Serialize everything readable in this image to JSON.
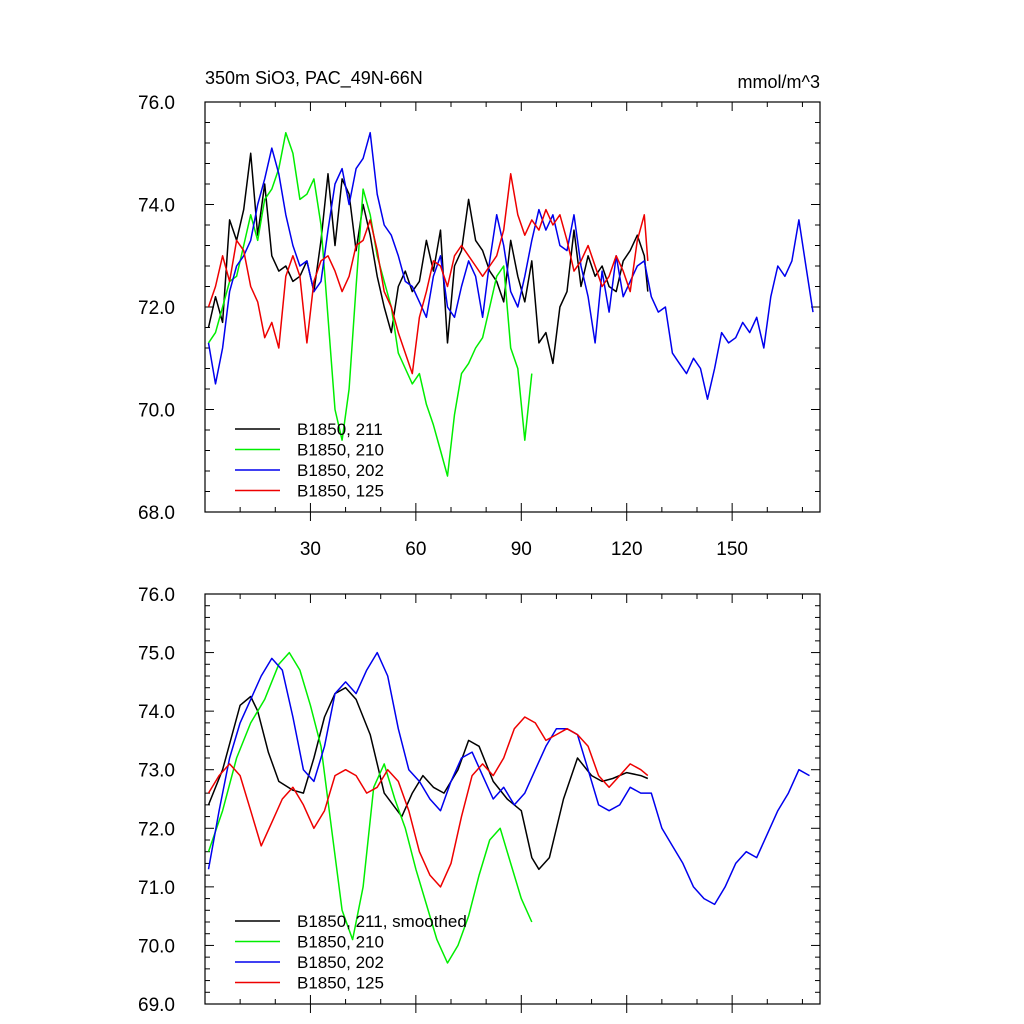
{
  "chart_data": [
    {
      "type": "line",
      "title_left": "350m SiO3, PAC_49N-66N",
      "title_right": "mmol/m^3",
      "xlim": [
        0,
        175
      ],
      "ylim": [
        68,
        76
      ],
      "x_ticks": [
        30,
        60,
        90,
        120,
        150
      ],
      "x_tick_labels": [
        "30",
        "60",
        "90",
        "120",
        "150"
      ],
      "y_ticks": [
        68,
        70,
        72,
        74,
        76
      ],
      "y_tick_labels": [
        "68.0",
        "70.0",
        "72.0",
        "74.0",
        "76.0"
      ],
      "legend_position": "bottom-left",
      "series": [
        {
          "name": "B1850, 211",
          "color": "#000000",
          "x": [
            1,
            3,
            5,
            7,
            9,
            11,
            13,
            15,
            17,
            19,
            21,
            23,
            25,
            27,
            29,
            31,
            33,
            35,
            37,
            39,
            41,
            43,
            45,
            47,
            49,
            51,
            53,
            55,
            57,
            59,
            61,
            63,
            65,
            67,
            69,
            71,
            73,
            75,
            77,
            79,
            81,
            83,
            85,
            87,
            89,
            91,
            93,
            95,
            97,
            99,
            101,
            103,
            105,
            107,
            109,
            111,
            113,
            115,
            117,
            119,
            121,
            123,
            125,
            126
          ],
          "values": [
            71.6,
            72.2,
            71.7,
            73.7,
            73.3,
            73.9,
            75.0,
            73.4,
            74.4,
            73.0,
            72.7,
            72.8,
            72.5,
            72.6,
            72.9,
            72.3,
            73.3,
            74.6,
            73.2,
            74.5,
            74.2,
            73.1,
            74.0,
            73.4,
            72.6,
            72.0,
            71.5,
            72.4,
            72.7,
            72.3,
            72.5,
            73.3,
            72.7,
            73.5,
            71.3,
            72.8,
            73.1,
            74.1,
            73.3,
            73.1,
            72.7,
            72.5,
            72.1,
            73.3,
            72.6,
            72.1,
            72.9,
            71.3,
            71.5,
            70.9,
            72.0,
            72.3,
            73.5,
            72.4,
            73.0,
            72.6,
            72.8,
            72.4,
            72.3,
            72.9,
            73.1,
            73.4,
            73.0,
            72.3
          ]
        },
        {
          "name": "B1850, 210",
          "color": "#00ee00",
          "x": [
            1,
            3,
            5,
            7,
            9,
            11,
            13,
            15,
            17,
            19,
            21,
            23,
            25,
            27,
            29,
            31,
            33,
            35,
            37,
            39,
            41,
            43,
            45,
            47,
            49,
            51,
            53,
            55,
            57,
            59,
            61,
            63,
            65,
            67,
            69,
            71,
            73,
            75,
            77,
            79,
            81,
            83,
            85,
            87,
            89,
            91,
            93
          ],
          "values": [
            71.3,
            71.5,
            72.0,
            72.5,
            72.6,
            73.2,
            73.8,
            73.3,
            74.1,
            74.3,
            74.7,
            75.4,
            75.0,
            74.1,
            74.2,
            74.5,
            73.6,
            71.8,
            70.0,
            69.4,
            70.4,
            72.4,
            74.3,
            73.8,
            73.0,
            72.5,
            72.0,
            71.1,
            70.8,
            70.5,
            70.7,
            70.1,
            69.7,
            69.2,
            68.7,
            69.9,
            70.7,
            70.9,
            71.2,
            71.4,
            72.0,
            72.6,
            72.8,
            71.2,
            70.8,
            69.4,
            70.7
          ]
        },
        {
          "name": "B1850, 202",
          "color": "#0000ee",
          "x": [
            1,
            3,
            5,
            7,
            9,
            11,
            13,
            15,
            17,
            19,
            21,
            23,
            25,
            27,
            29,
            31,
            33,
            35,
            37,
            39,
            41,
            43,
            45,
            47,
            49,
            51,
            53,
            55,
            57,
            59,
            61,
            63,
            65,
            67,
            69,
            71,
            73,
            75,
            77,
            79,
            81,
            83,
            85,
            87,
            89,
            91,
            93,
            95,
            97,
            99,
            101,
            103,
            105,
            107,
            109,
            111,
            113,
            115,
            117,
            119,
            121,
            123,
            125,
            127,
            129,
            131,
            133,
            135,
            137,
            139,
            141,
            143,
            145,
            147,
            149,
            151,
            153,
            155,
            157,
            159,
            161,
            163,
            165,
            167,
            169,
            171,
            173
          ],
          "values": [
            71.3,
            70.5,
            71.2,
            72.3,
            72.8,
            73.0,
            73.3,
            74.0,
            74.5,
            75.1,
            74.6,
            73.8,
            73.2,
            72.8,
            72.9,
            72.3,
            72.5,
            73.5,
            74.4,
            74.7,
            74.0,
            74.7,
            74.9,
            75.4,
            74.2,
            73.6,
            73.4,
            73.0,
            72.5,
            72.4,
            72.1,
            71.8,
            72.6,
            73.0,
            72.0,
            71.8,
            72.4,
            72.9,
            72.6,
            71.8,
            72.9,
            73.8,
            73.2,
            72.3,
            72.0,
            72.6,
            73.3,
            73.9,
            73.5,
            73.8,
            73.2,
            73.1,
            73.8,
            72.8,
            72.2,
            71.3,
            72.7,
            71.9,
            73.0,
            72.2,
            72.5,
            72.8,
            72.9,
            72.2,
            71.9,
            72.0,
            71.1,
            70.9,
            70.7,
            71.0,
            70.8,
            70.2,
            70.8,
            71.5,
            71.3,
            71.4,
            71.7,
            71.5,
            71.8,
            71.2,
            72.2,
            72.8,
            72.6,
            72.9,
            73.7,
            72.8,
            71.9
          ]
        },
        {
          "name": "B1850, 125",
          "color": "#ee0000",
          "x": [
            1,
            3,
            5,
            7,
            9,
            11,
            13,
            15,
            17,
            19,
            21,
            23,
            25,
            27,
            29,
            31,
            33,
            35,
            37,
            39,
            41,
            43,
            45,
            47,
            49,
            51,
            53,
            55,
            57,
            59,
            61,
            63,
            65,
            67,
            69,
            71,
            73,
            75,
            77,
            79,
            81,
            83,
            85,
            87,
            89,
            91,
            93,
            95,
            97,
            99,
            101,
            103,
            105,
            107,
            109,
            111,
            113,
            115,
            117,
            119,
            121,
            123,
            125,
            126
          ],
          "values": [
            72.0,
            72.4,
            73.0,
            72.5,
            73.3,
            73.1,
            72.4,
            72.1,
            71.4,
            71.7,
            71.2,
            72.6,
            73.0,
            72.6,
            71.3,
            72.5,
            72.9,
            73.0,
            72.7,
            72.3,
            72.6,
            73.2,
            73.3,
            73.7,
            73.1,
            72.3,
            72.0,
            71.5,
            71.1,
            70.7,
            71.8,
            72.3,
            72.9,
            72.8,
            72.4,
            73.0,
            73.2,
            73.0,
            72.8,
            72.6,
            72.8,
            73.0,
            73.5,
            74.6,
            73.8,
            73.4,
            73.7,
            73.5,
            73.9,
            73.6,
            73.8,
            73.3,
            72.7,
            72.9,
            73.2,
            72.8,
            72.4,
            72.6,
            73.0,
            72.7,
            72.3,
            73.3,
            73.8,
            72.9
          ]
        }
      ]
    },
    {
      "type": "line",
      "xlim": [
        0,
        175
      ],
      "ylim": [
        69,
        76
      ],
      "y_ticks": [
        69,
        70,
        71,
        72,
        73,
        74,
        75,
        76
      ],
      "y_tick_labels": [
        "69.0",
        "70.0",
        "71.0",
        "72.0",
        "73.0",
        "74.0",
        "75.0",
        "76.0"
      ],
      "x_ticks": [
        30,
        60,
        90,
        120,
        150
      ],
      "legend_position": "bottom-left",
      "series": [
        {
          "name": "B1850, 211, smoothed",
          "color": "#000000",
          "x": [
            1,
            5,
            10,
            13,
            15,
            18,
            21,
            25,
            28,
            31,
            34,
            37,
            40,
            43,
            47,
            51,
            56,
            59,
            62,
            65,
            68,
            72,
            75,
            78,
            82,
            86,
            90,
            93,
            95,
            98,
            102,
            106,
            110,
            113,
            116,
            120,
            124,
            126
          ],
          "values": [
            72.4,
            73.0,
            74.1,
            74.25,
            74.0,
            73.3,
            72.8,
            72.65,
            72.6,
            73.2,
            73.9,
            74.3,
            74.4,
            74.2,
            73.6,
            72.6,
            72.2,
            72.6,
            72.9,
            72.7,
            72.6,
            73.0,
            73.5,
            73.4,
            72.8,
            72.5,
            72.3,
            71.5,
            71.3,
            71.5,
            72.5,
            73.2,
            72.9,
            72.8,
            72.85,
            72.95,
            72.9,
            72.85
          ]
        },
        {
          "name": "B1850, 210",
          "color": "#00ee00",
          "x": [
            1,
            5,
            9,
            13,
            17,
            21,
            24,
            27,
            30,
            33,
            36,
            39,
            42,
            45,
            48,
            51,
            54,
            57,
            60,
            63,
            66,
            69,
            72,
            75,
            78,
            81,
            84,
            87,
            90,
            93
          ],
          "values": [
            71.6,
            72.3,
            73.2,
            73.8,
            74.2,
            74.8,
            75.0,
            74.7,
            74.1,
            73.4,
            72.0,
            70.6,
            70.1,
            71.0,
            72.7,
            73.1,
            72.5,
            72.0,
            71.3,
            70.7,
            70.1,
            69.7,
            70.0,
            70.5,
            71.2,
            71.8,
            72.0,
            71.4,
            70.8,
            70.4
          ]
        },
        {
          "name": "B1850, 202",
          "color": "#0000ee",
          "x": [
            1,
            4,
            7,
            10,
            13,
            16,
            19,
            22,
            25,
            28,
            31,
            34,
            37,
            40,
            43,
            46,
            49,
            52,
            55,
            58,
            61,
            64,
            67,
            70,
            73,
            76,
            79,
            82,
            85,
            88,
            91,
            94,
            97,
            100,
            103,
            106,
            109,
            112,
            115,
            118,
            121,
            124,
            127,
            130,
            133,
            136,
            139,
            142,
            145,
            148,
            151,
            154,
            157,
            160,
            163,
            166,
            169,
            172
          ],
          "values": [
            71.3,
            72.3,
            73.2,
            73.8,
            74.2,
            74.6,
            74.9,
            74.7,
            73.9,
            73.0,
            72.8,
            73.4,
            74.3,
            74.5,
            74.3,
            74.7,
            75.0,
            74.6,
            73.7,
            73.0,
            72.8,
            72.5,
            72.3,
            72.8,
            73.2,
            73.3,
            72.9,
            72.5,
            72.7,
            72.4,
            72.6,
            73.0,
            73.4,
            73.7,
            73.7,
            73.6,
            73.0,
            72.4,
            72.3,
            72.4,
            72.7,
            72.6,
            72.6,
            72.0,
            71.7,
            71.4,
            71.0,
            70.8,
            70.7,
            71.0,
            71.4,
            71.6,
            71.5,
            71.9,
            72.3,
            72.6,
            73.0,
            72.9
          ]
        },
        {
          "name": "B1850, 125",
          "color": "#ee0000",
          "x": [
            1,
            4,
            7,
            10,
            13,
            16,
            19,
            22,
            25,
            28,
            31,
            34,
            37,
            40,
            43,
            46,
            49,
            52,
            55,
            58,
            61,
            64,
            67,
            70,
            73,
            76,
            79,
            82,
            85,
            88,
            91,
            94,
            97,
            100,
            103,
            106,
            109,
            112,
            115,
            118,
            121,
            124,
            126
          ],
          "values": [
            72.6,
            72.9,
            73.1,
            72.9,
            72.3,
            71.7,
            72.1,
            72.5,
            72.7,
            72.4,
            72.0,
            72.3,
            72.9,
            73.0,
            72.9,
            72.6,
            72.7,
            73.0,
            72.8,
            72.3,
            71.6,
            71.2,
            71.0,
            71.4,
            72.2,
            72.9,
            73.1,
            72.9,
            73.2,
            73.7,
            73.9,
            73.8,
            73.5,
            73.6,
            73.7,
            73.6,
            73.4,
            72.9,
            72.7,
            72.9,
            73.1,
            73.0,
            72.9
          ]
        }
      ]
    }
  ]
}
